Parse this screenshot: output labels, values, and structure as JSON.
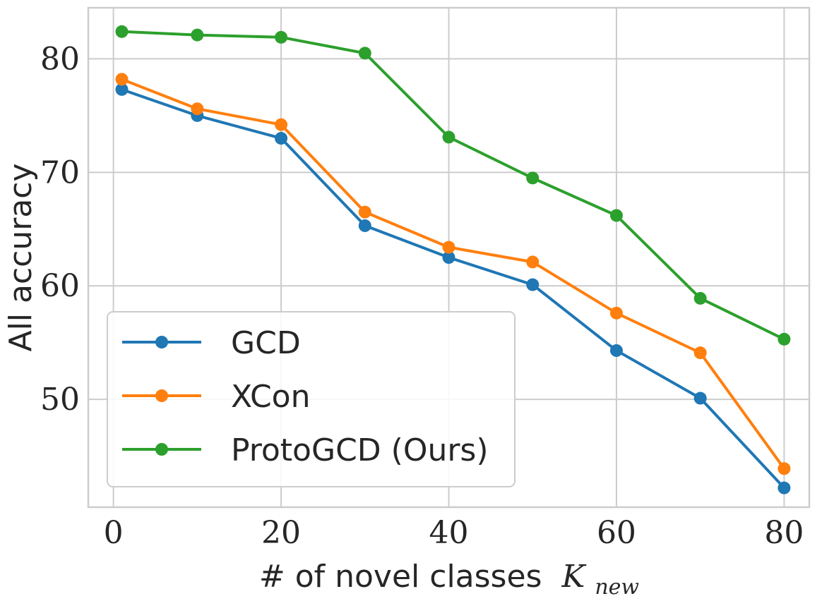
{
  "chart_data": {
    "type": "line",
    "title": "",
    "xlabel": "# of novel classes",
    "xlabel_symbol": "K",
    "xlabel_subscript": "new",
    "ylabel": "All accuracy",
    "xlim": [
      -3,
      83
    ],
    "ylim": [
      40.5,
      84.5
    ],
    "xticks": [
      0,
      20,
      40,
      60,
      80
    ],
    "yticks": [
      50,
      60,
      70,
      80
    ],
    "grid": true,
    "legend_position": "bottom-left",
    "x": [
      1,
      10,
      20,
      30,
      40,
      50,
      60,
      70,
      80
    ],
    "series": [
      {
        "name": "GCD",
        "color": "#1f77b4",
        "values": [
          77.3,
          75.0,
          73.0,
          65.3,
          62.5,
          60.1,
          54.3,
          50.1,
          42.2
        ]
      },
      {
        "name": "XCon",
        "color": "#ff7f0e",
        "values": [
          78.2,
          75.6,
          74.2,
          66.5,
          63.4,
          62.1,
          57.6,
          54.1,
          43.9
        ]
      },
      {
        "name": "ProtoGCD (Ours)",
        "color": "#2ca02c",
        "values": [
          82.4,
          82.1,
          81.9,
          80.5,
          73.1,
          69.5,
          66.2,
          58.9,
          55.3
        ]
      }
    ]
  }
}
